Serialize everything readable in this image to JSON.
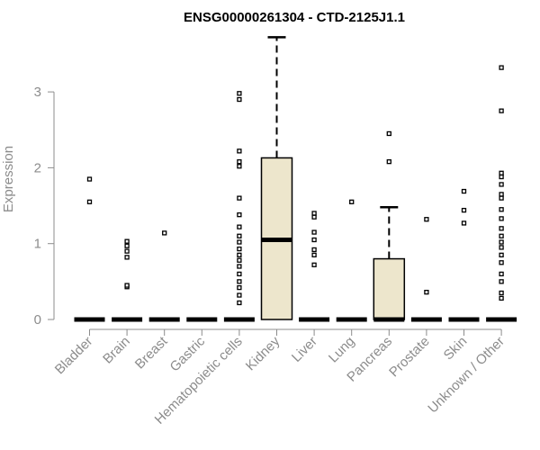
{
  "chart_data": {
    "type": "box",
    "title": "ENSG00000261304 - CTD-2125J1.1",
    "xlabel": "",
    "ylabel": "Expression",
    "ylim": [
      0,
      3.75
    ],
    "yticks": [
      0,
      1,
      2,
      3
    ],
    "grid": false,
    "legend": "none",
    "colors": {
      "box_fill": "#ede6cc",
      "stroke": "#000000",
      "axis": "#8c8c8c"
    },
    "categories": [
      "Bladder",
      "Brain",
      "Breast",
      "Gastric",
      "Hematopoietic cells",
      "Kidney",
      "Liver",
      "Lung",
      "Pancreas",
      "Prostate",
      "Skin",
      "Unknown / Other"
    ],
    "boxes": [
      {
        "category": "Bladder",
        "q1": 0,
        "median": 0,
        "q3": 0,
        "whisker_low": 0,
        "whisker_high": 0,
        "outliers": [
          1.55,
          1.85
        ]
      },
      {
        "category": "Brain",
        "q1": 0,
        "median": 0,
        "q3": 0,
        "whisker_low": 0,
        "whisker_high": 0,
        "outliers": [
          0.43,
          0.45,
          0.82,
          0.9,
          0.97,
          1.03
        ]
      },
      {
        "category": "Breast",
        "q1": 0,
        "median": 0,
        "q3": 0,
        "whisker_low": 0,
        "whisker_high": 0,
        "outliers": [
          1.14
        ]
      },
      {
        "category": "Gastric",
        "q1": 0,
        "median": 0,
        "q3": 0,
        "whisker_low": 0,
        "whisker_high": 0,
        "outliers": []
      },
      {
        "category": "Hematopoietic cells",
        "q1": 0,
        "median": 0,
        "q3": 0,
        "whisker_low": 0,
        "whisker_high": 0,
        "outliers": [
          0.22,
          0.32,
          0.42,
          0.5,
          0.6,
          0.7,
          0.78,
          0.85,
          0.93,
          1.02,
          1.1,
          1.22,
          1.38,
          1.6,
          2.02,
          2.08,
          2.22,
          2.9,
          2.98
        ]
      },
      {
        "category": "Kidney",
        "q1": 0,
        "median": 1.05,
        "q3": 2.13,
        "whisker_low": 0,
        "whisker_high": 3.72,
        "outliers": []
      },
      {
        "category": "Liver",
        "q1": 0,
        "median": 0,
        "q3": 0,
        "whisker_low": 0,
        "whisker_high": 0,
        "outliers": [
          0.72,
          0.85,
          0.92,
          1.05,
          1.15,
          1.35,
          1.4
        ]
      },
      {
        "category": "Lung",
        "q1": 0,
        "median": 0,
        "q3": 0,
        "whisker_low": 0,
        "whisker_high": 0,
        "outliers": [
          1.55
        ]
      },
      {
        "category": "Pancreas",
        "q1": 0,
        "median": 0,
        "q3": 0.8,
        "whisker_low": 0,
        "whisker_high": 1.48,
        "outliers": [
          2.08,
          2.45
        ]
      },
      {
        "category": "Prostate",
        "q1": 0,
        "median": 0,
        "q3": 0,
        "whisker_low": 0,
        "whisker_high": 0,
        "outliers": [
          0.36,
          1.32
        ]
      },
      {
        "category": "Skin",
        "q1": 0,
        "median": 0,
        "q3": 0,
        "whisker_low": 0,
        "whisker_high": 0,
        "outliers": [
          1.27,
          1.44,
          1.69
        ]
      },
      {
        "category": "Unknown / Other",
        "q1": 0,
        "median": 0,
        "q3": 0,
        "whisker_low": 0,
        "whisker_high": 0,
        "outliers": [
          0.28,
          0.35,
          0.5,
          0.6,
          0.75,
          0.85,
          0.95,
          1.02,
          1.1,
          1.2,
          1.33,
          1.45,
          1.6,
          1.65,
          1.78,
          1.88,
          1.93,
          2.75,
          3.32
        ]
      }
    ]
  }
}
